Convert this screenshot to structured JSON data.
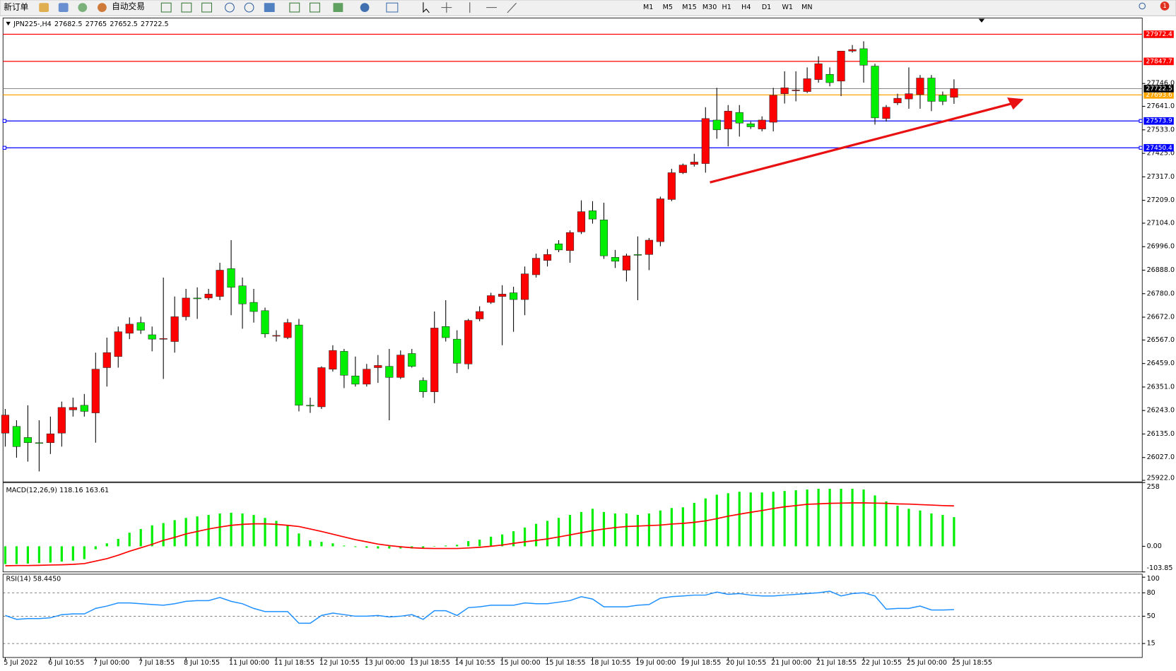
{
  "toolbar": {
    "new_order": "新订单",
    "auto_trading": "自动交易",
    "timeframes": [
      "M1",
      "M5",
      "M15",
      "M30",
      "H1",
      "H4",
      "D1",
      "W1",
      "MN"
    ],
    "notifications": 1
  },
  "chart_data": [
    {
      "type": "candlestick",
      "symbol": "JPN225-,H4",
      "up_color": "#ff0000",
      "down_color": "#00ee00",
      "categories": [
        "5 Jul 2022",
        null,
        null,
        null,
        "6 Jul 10:55",
        null,
        null,
        null,
        "7 Jul 00:00",
        null,
        null,
        null,
        "7 Jul 18:55",
        null,
        null,
        null,
        "8 Jul 10:55",
        null,
        null,
        null,
        "11 Jul 00:00",
        null,
        null,
        null,
        "11 Jul 18:55",
        null,
        null,
        null,
        "12 Jul 10:55",
        null,
        null,
        null,
        "13 Jul 00:00",
        null,
        null,
        null,
        "13 Jul 18:55",
        null,
        null,
        null,
        "14 Jul 10:55",
        null,
        null,
        null,
        "15 Jul 00:00",
        null,
        null,
        null,
        "15 Jul 18:55",
        null,
        null,
        null,
        "18 Jul 10:55",
        null,
        null,
        null,
        "19 Jul 00:00",
        null,
        null,
        null,
        "19 Jul 18:55",
        null,
        null,
        null,
        "20 Jul 10:55",
        null,
        null,
        null,
        "21 Jul 00:00",
        null,
        null,
        null,
        "21 Jul 18:55",
        null,
        null,
        null,
        "22 Jul 10:55",
        null,
        null,
        null,
        "25 Jul 00:00",
        null,
        null,
        null,
        "25 Jul 18:55"
      ],
      "open": [
        26139,
        26170,
        26119,
        26095,
        26095,
        26139,
        26246,
        26267,
        26232,
        26440,
        26491,
        26598,
        26647,
        26591,
        26571,
        26560,
        26674,
        26760,
        26760,
        26767,
        26895,
        26816,
        26740,
        26702,
        26588,
        26578,
        26636,
        26267,
        26260,
        26433,
        26515,
        26402,
        26364,
        26440,
        26446,
        26395,
        26505,
        26381,
        26329,
        26629,
        26571,
        26457,
        26664,
        26740,
        26767,
        26784,
        26753,
        26867,
        26933,
        27009,
        26978,
        27064,
        27161,
        27119,
        26947,
        26888,
        26960,
        26960,
        27019,
        27213,
        27336,
        27374,
        27378,
        27578,
        27537,
        27613,
        27561,
        27537,
        27568,
        27699,
        27713,
        27709,
        27764,
        27788,
        27757,
        27895,
        27906,
        27826,
        27585,
        27657,
        27675,
        27695,
        27771,
        27692,
        27682.5
      ],
      "high": [
        26250,
        26198,
        26267,
        26198,
        26215,
        26284,
        26302,
        26319,
        26509,
        26578,
        26629,
        26671,
        26674,
        26629,
        26854,
        26767,
        26802,
        26809,
        26802,
        26922,
        27026,
        26854,
        26802,
        26716,
        26612,
        26664,
        26664,
        26302,
        26446,
        26543,
        26526,
        26491,
        26457,
        26498,
        26526,
        26519,
        26526,
        26395,
        26698,
        26750,
        26612,
        26664,
        26722,
        26784,
        26819,
        26812,
        26905,
        26964,
        26985,
        27026,
        27071,
        27209,
        27205,
        27198,
        26981,
        26964,
        27043,
        27036,
        27226,
        27354,
        27378,
        27423,
        27637,
        27726,
        27647,
        27647,
        27571,
        27595,
        27726,
        27802,
        27802,
        27820,
        27871,
        27820,
        27895,
        27923,
        27940,
        27837,
        27647,
        27699,
        27820,
        27785,
        27785,
        27709,
        27765.0
      ],
      "low": [
        26077,
        26026,
        26008,
        25963,
        26043,
        26077,
        26215,
        26215,
        26095,
        26353,
        26440,
        26571,
        26595,
        26515,
        26388,
        26509,
        26657,
        26664,
        26750,
        26750,
        26681,
        26619,
        26647,
        26578,
        26560,
        26571,
        26239,
        26232,
        26250,
        26422,
        26346,
        26353,
        26353,
        26370,
        26198,
        26388,
        26440,
        26302,
        26277,
        26560,
        26415,
        26433,
        26653,
        26733,
        26543,
        26605,
        26681,
        26854,
        26905,
        26971,
        26922,
        27054,
        27102,
        26940,
        26898,
        26836,
        26750,
        26888,
        26998,
        27205,
        27330,
        27364,
        27336,
        27492,
        27457,
        27502,
        27537,
        27526,
        27526,
        27654,
        27664,
        27702,
        27750,
        27733,
        27688,
        27888,
        27750,
        27557,
        27571,
        27647,
        27630,
        27630,
        27619,
        27647,
        27652.5
      ],
      "close": [
        26222,
        26077,
        26095,
        26092,
        26136,
        26257,
        26257,
        26239,
        26433,
        26509,
        26605,
        26640,
        26612,
        26571,
        26574,
        26674,
        26760,
        26757,
        26778,
        26888,
        26809,
        26733,
        26698,
        26595,
        26588,
        26647,
        26267,
        26264,
        26440,
        26519,
        26405,
        26364,
        26433,
        26450,
        26395,
        26498,
        26446,
        26329,
        26622,
        26578,
        26460,
        26657,
        26698,
        26771,
        26778,
        26753,
        26871,
        26943,
        26960,
        26981,
        27061,
        27157,
        27123,
        26954,
        26929,
        26954,
        26957,
        27026,
        27216,
        27336,
        27371,
        27385,
        27585,
        27533,
        27619,
        27564,
        27547,
        27578,
        27692,
        27726,
        27716,
        27768,
        27837,
        27750,
        27895,
        27902,
        27830,
        27588,
        27637,
        27678,
        27699,
        27771,
        27664,
        27664,
        27722.5
      ],
      "ylim": [
        25915,
        28047
      ],
      "yticks": [
        {
          "value": 27746,
          "label": "27746.0"
        },
        {
          "value": 27641,
          "label": "27641.0"
        },
        {
          "value": 27533,
          "label": "27533.0"
        },
        {
          "value": 27425,
          "label": "27425.0"
        },
        {
          "value": 27317,
          "label": "27317.0"
        },
        {
          "value": 27209,
          "label": "27209.0"
        },
        {
          "value": 27104,
          "label": "27104.0"
        },
        {
          "value": 26996,
          "label": "26996.0"
        },
        {
          "value": 26888,
          "label": "26888.0"
        },
        {
          "value": 26780,
          "label": "26780.0"
        },
        {
          "value": 26672,
          "label": "26672.0"
        },
        {
          "value": 26567,
          "label": "26567.0"
        },
        {
          "value": 26459,
          "label": "26459.0"
        },
        {
          "value": 26351,
          "label": "26351.0"
        },
        {
          "value": 26243,
          "label": "26243.0"
        },
        {
          "value": 26135,
          "label": "26135.0"
        },
        {
          "value": 26027,
          "label": "26027.0"
        },
        {
          "value": 25922,
          "label": "25922.0"
        }
      ],
      "hlines": [
        {
          "value": 27972.4,
          "color": "#ff0000"
        },
        {
          "value": 27847.7,
          "color": "#ff0000"
        },
        {
          "value": 27693.6,
          "color": "#ffa500"
        },
        {
          "value": 27573.9,
          "color": "#0000ff"
        },
        {
          "value": 27450.4,
          "color": "#0000ff"
        }
      ],
      "price_line_color": "#000000"
    },
    {
      "type": "macd",
      "title": "MACD(12,26,9)",
      "ylim": [
        -103.85,
        258
      ],
      "yticks": [
        258,
        {
          "value": 0,
          "label": "0.00"
        },
        -103.85
      ],
      "series": [
        {
          "color": "#00ee00",
          "values": [
            -72,
            -72,
            -70,
            -68,
            -66,
            -62,
            -58,
            -52,
            -12,
            12,
            30,
            55,
            70,
            85,
            94,
            106,
            115,
            121,
            127,
            133,
            136,
            133,
            127,
            115,
            103,
            85,
            52,
            24,
            18,
            12,
            3,
            -3,
            -6,
            -9,
            -9,
            -9,
            -9,
            -6,
            1,
            3,
            6,
            21,
            27,
            39,
            48,
            61,
            76,
            91,
            103,
            115,
            127,
            139,
            152,
            139,
            133,
            133,
            127,
            133,
            145,
            155,
            158,
            176,
            194,
            209,
            215,
            221,
            218,
            218,
            221,
            224,
            227,
            230,
            233,
            233,
            233,
            233,
            230,
            206,
            182,
            164,
            152,
            145,
            133,
            127,
            118.16
          ]
        },
        {
          "color": "#ff0000",
          "values": [
            -79,
            -78,
            -78,
            -77,
            -76,
            -75,
            -73,
            -70,
            -60,
            -50,
            -36,
            -20,
            -6,
            8,
            24,
            36,
            50,
            60,
            70,
            78,
            85,
            89,
            91,
            91,
            89,
            85,
            80,
            70,
            60,
            49,
            38,
            27,
            18,
            9,
            3,
            -2,
            -6,
            -8,
            -9,
            -9,
            -9,
            -7,
            -4,
            0,
            5,
            12,
            18,
            24,
            30,
            38,
            46,
            55,
            63,
            70,
            76,
            80,
            82,
            84,
            86,
            90,
            93,
            97,
            103,
            112,
            122,
            130,
            138,
            145,
            153,
            160,
            165,
            170,
            172,
            174,
            175,
            176,
            176,
            175,
            174,
            172,
            171,
            169,
            167,
            165,
            163.61
          ]
        }
      ]
    },
    {
      "type": "rsi",
      "title": "RSI(14)",
      "current_label": "58.4450",
      "color": "#1e90ff",
      "ylim": [
        0,
        100
      ],
      "yticks": [
        100,
        80,
        50,
        15
      ],
      "values": [
        51,
        46,
        47,
        47,
        48,
        52,
        53,
        53,
        60,
        63,
        67,
        67,
        66,
        65,
        64,
        66,
        69,
        70,
        70,
        74,
        69,
        66,
        60,
        56,
        56,
        56,
        41,
        41,
        51,
        54,
        52,
        50,
        50,
        51,
        49,
        50,
        52,
        46,
        57,
        57,
        51,
        61,
        62,
        64,
        64,
        64,
        67,
        66,
        66,
        68,
        70,
        75,
        72,
        62,
        62,
        62,
        64,
        65,
        73,
        75,
        76,
        77,
        77,
        81,
        78,
        79,
        77,
        76,
        76,
        77,
        78,
        79,
        80,
        82,
        76,
        79,
        80,
        76,
        59,
        60,
        60,
        63,
        58,
        58,
        58.445
      ]
    }
  ]
}
